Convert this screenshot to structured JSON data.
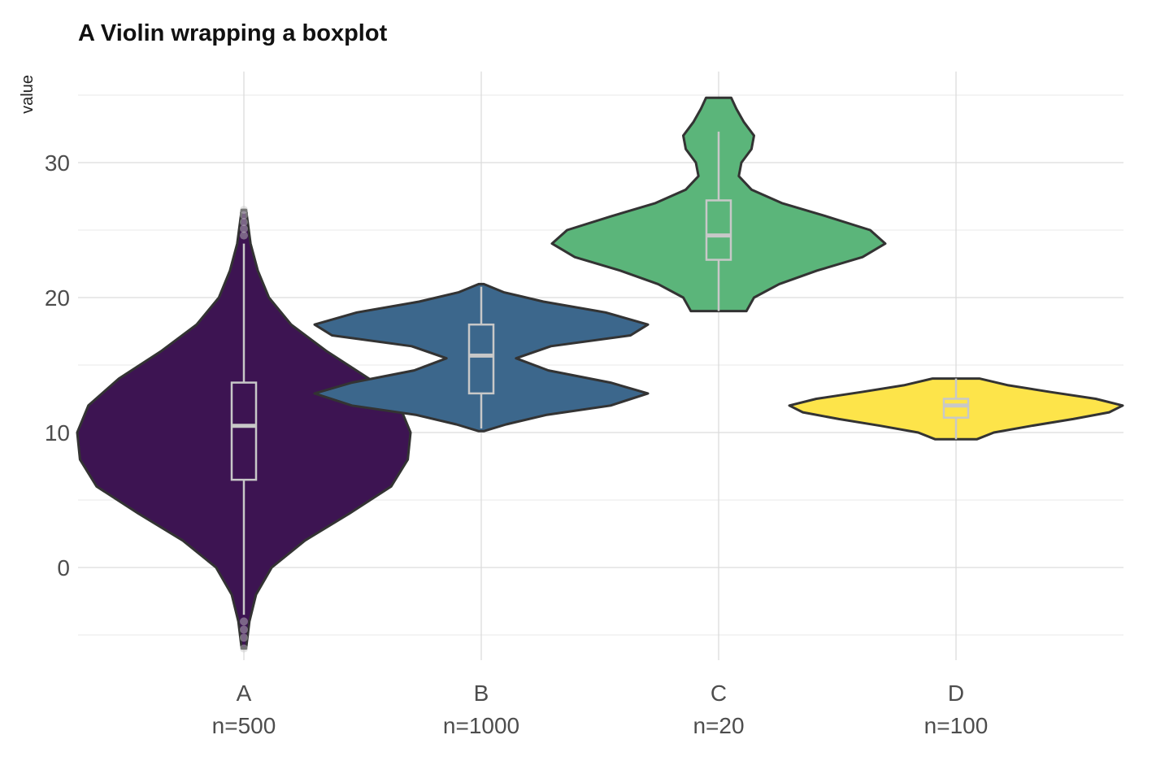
{
  "chart_data": {
    "type": "violin",
    "title": "A Violin wrapping a boxplot",
    "xlabel": "",
    "ylabel": "value",
    "ylim": [
      -6.5,
      35.5
    ],
    "y_ticks": [
      0,
      10,
      20,
      30
    ],
    "y_minor_ticks": [
      -5,
      5,
      15,
      25,
      35
    ],
    "grid": true,
    "legend": "none",
    "box_color": "#c8c8c8",
    "outline_color": "#333333",
    "categories": [
      {
        "name": "A",
        "label": "n=500",
        "fill": "#3d1452",
        "min": -6.0,
        "max": 26.5,
        "box": {
          "q1": 6.5,
          "median": 10.5,
          "q3": 13.7,
          "whisker_low": -3.5,
          "whisker_high": 24.0
        },
        "outliers": [
          -6.0,
          -5.2,
          -4.6,
          -4.0,
          24.6,
          25.1,
          25.6,
          26.1,
          26.5
        ],
        "density": [
          [
            -6.0,
            0.004
          ],
          [
            -4.0,
            0.01
          ],
          [
            -2.0,
            0.022
          ],
          [
            0.0,
            0.05
          ],
          [
            2.0,
            0.11
          ],
          [
            4.0,
            0.19
          ],
          [
            6.0,
            0.265
          ],
          [
            8.0,
            0.295
          ],
          [
            10.0,
            0.3
          ],
          [
            12.0,
            0.28
          ],
          [
            14.0,
            0.225
          ],
          [
            16.0,
            0.15
          ],
          [
            18.0,
            0.085
          ],
          [
            20.0,
            0.045
          ],
          [
            22.0,
            0.025
          ],
          [
            24.0,
            0.012
          ],
          [
            26.5,
            0.004
          ]
        ]
      },
      {
        "name": "B",
        "label": "n=1000",
        "fill": "#3c678c",
        "min": 10.1,
        "max": 21.0,
        "box": {
          "q1": 12.9,
          "median": 15.7,
          "q3": 18.0,
          "whisker_low": 10.3,
          "whisker_high": 20.8
        },
        "outliers": [],
        "density": [
          [
            10.1,
            0.01
          ],
          [
            10.6,
            0.1
          ],
          [
            11.3,
            0.26
          ],
          [
            12.0,
            0.52
          ],
          [
            12.9,
            0.67
          ],
          [
            13.7,
            0.52
          ],
          [
            14.6,
            0.27
          ],
          [
            15.5,
            0.14
          ],
          [
            16.4,
            0.28
          ],
          [
            17.2,
            0.6
          ],
          [
            18.0,
            0.67
          ],
          [
            18.9,
            0.5
          ],
          [
            19.7,
            0.25
          ],
          [
            20.4,
            0.09
          ],
          [
            21.0,
            0.01
          ]
        ]
      },
      {
        "name": "C",
        "label": "n=20",
        "fill": "#5bb57a",
        "min": 19.0,
        "max": 34.8,
        "box": {
          "q1": 22.8,
          "median": 24.6,
          "q3": 27.2,
          "whisker_low": 19.0,
          "whisker_high": 32.3
        },
        "outliers": [],
        "density": [
          [
            19.0,
            0.11
          ],
          [
            20.0,
            0.14
          ],
          [
            21.0,
            0.24
          ],
          [
            22.0,
            0.39
          ],
          [
            23.0,
            0.57
          ],
          [
            24.0,
            0.66
          ],
          [
            25.0,
            0.6
          ],
          [
            26.0,
            0.43
          ],
          [
            27.0,
            0.25
          ],
          [
            28.0,
            0.13
          ],
          [
            29.0,
            0.08
          ],
          [
            30.0,
            0.09
          ],
          [
            31.0,
            0.13
          ],
          [
            32.0,
            0.14
          ],
          [
            33.0,
            0.1
          ],
          [
            34.0,
            0.07
          ],
          [
            34.8,
            0.05
          ]
        ]
      },
      {
        "name": "D",
        "label": "n=100",
        "fill": "#fde44a",
        "min": 9.5,
        "max": 14.0,
        "box": {
          "q1": 11.1,
          "median": 12.0,
          "q3": 12.5,
          "whisker_low": 9.5,
          "whisker_high": 14.0
        },
        "outliers": [],
        "density": [
          [
            9.5,
            0.23
          ],
          [
            10.0,
            0.42
          ],
          [
            10.5,
            0.84
          ],
          [
            11.0,
            1.3
          ],
          [
            11.5,
            1.7
          ],
          [
            12.0,
            1.85
          ],
          [
            12.5,
            1.55
          ],
          [
            13.0,
            1.05
          ],
          [
            13.5,
            0.58
          ],
          [
            14.0,
            0.26
          ]
        ]
      }
    ]
  }
}
